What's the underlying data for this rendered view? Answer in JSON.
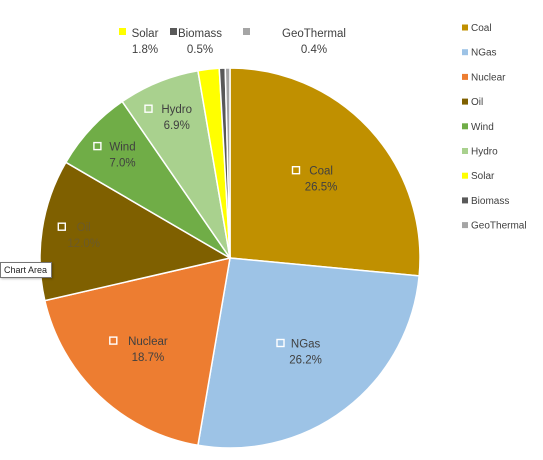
{
  "chart_data": {
    "type": "pie",
    "categories": [
      "Coal",
      "NGas",
      "Nuclear",
      "Oil",
      "Wind",
      "Hydro",
      "Solar",
      "Biomass",
      "GeoThermal"
    ],
    "values": [
      26.5,
      26.2,
      18.7,
      12.0,
      7.0,
      6.9,
      1.8,
      0.5,
      0.4
    ],
    "value_labels": [
      "26.5%",
      "26.2%",
      "18.7%",
      "12.0%",
      "7.0%",
      "6.9%",
      "1.8%",
      "0.5%",
      "0.4%"
    ],
    "colors": [
      "#C09000",
      "#9DC3E6",
      "#ED7D31",
      "#7F6000",
      "#70AD47",
      "#A9D18E",
      "#FFFF00",
      "#595959",
      "#A5A5A5"
    ],
    "legend_placement": "right",
    "start_angle": "top, clockwise"
  },
  "tooltip": {
    "text": "Chart Area"
  }
}
